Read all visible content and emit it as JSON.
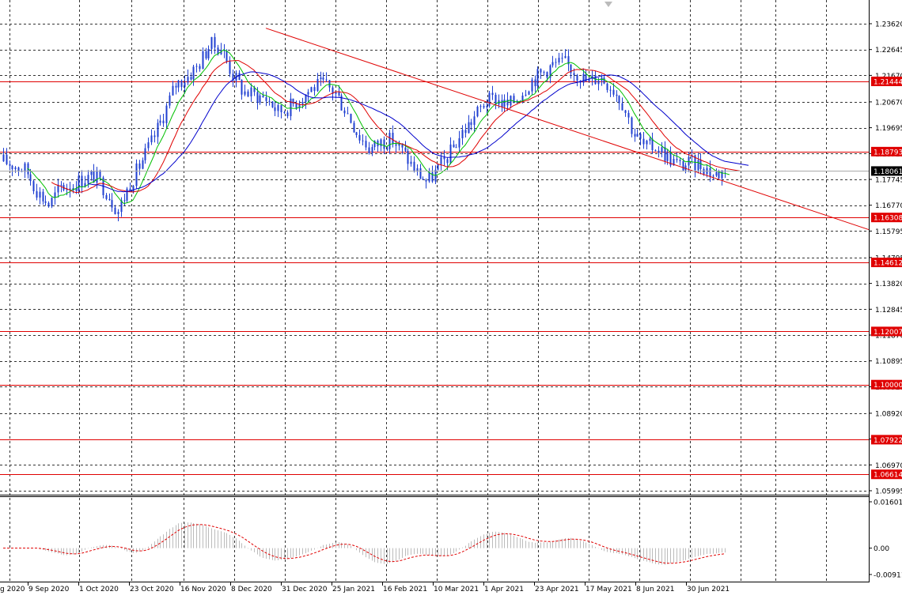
{
  "chart_data": [
    {
      "type": "candlestick",
      "instrument": "",
      "ylim": [
        1.05995,
        1.2362
      ],
      "y_ticks": [
        "1.23620",
        "1.22645",
        "1.21670",
        "1.20670",
        "1.19695",
        "1.18720",
        "1.17745",
        "1.16770",
        "1.15795",
        "1.14795",
        "1.13820",
        "1.12845",
        "1.11870",
        "1.10895",
        "1.09920",
        "1.08920",
        "1.07945",
        "1.06970",
        "1.05995"
      ],
      "x_labels": [
        "9 Sep 2020",
        "1 Oct 2020",
        "23 Oct 2020",
        "16 Nov 2020",
        "8 Dec 2020",
        "31 Dec 2020",
        "25 Jan 2021",
        "16 Feb 2021",
        "10 Mar 2021",
        "1 Apr 2021",
        "23 Apr 2021",
        "17 May 2021",
        "8 Jun 2021",
        "30 Jun 2021"
      ],
      "first_label_fragment": "g 2020",
      "current_price": "1.18061",
      "grid": true,
      "horizontal_levels": [
        {
          "value": 1.21444,
          "label": "1.21444"
        },
        {
          "value": 1.18793,
          "label": "1.18793"
        },
        {
          "value": 1.16308,
          "label": "1.16308"
        },
        {
          "value": 1.14612,
          "label": "1.14612"
        },
        {
          "value": 1.12007,
          "label": "1.12007"
        },
        {
          "value": 1.1,
          "label": "1.10000"
        },
        {
          "value": 1.07922,
          "label": "1.07922"
        },
        {
          "value": 1.06614,
          "label": "1.06614"
        }
      ],
      "trendline": {
        "start": [
          "22 Dec 2020",
          1.2345
        ],
        "end": [
          "past chart edge",
          1.1585
        ]
      },
      "price_path": [
        [
          1.183,
          1.1855
        ],
        [
          1.185,
          1.1805
        ],
        [
          1.182,
          1.1795
        ],
        [
          1.177,
          1.1685
        ],
        [
          1.17,
          1.1655
        ],
        [
          1.172,
          1.1775
        ],
        [
          1.176,
          1.1745
        ],
        [
          1.177,
          1.1785
        ],
        [
          1.18,
          1.1775
        ],
        [
          1.178,
          1.168
        ],
        [
          1.166,
          1.165
        ],
        [
          1.17,
          1.1805
        ],
        [
          1.183,
          1.1845
        ],
        [
          1.1895,
          1.1945
        ],
        [
          1.196,
          1.208
        ],
        [
          1.21,
          1.2165
        ],
        [
          1.213,
          1.219
        ],
        [
          1.216,
          1.225
        ],
        [
          1.2255,
          1.231
        ],
        [
          1.229,
          1.2255
        ],
        [
          1.219,
          1.215
        ],
        [
          1.212,
          1.209
        ],
        [
          1.2085,
          1.21
        ],
        [
          1.209,
          1.207
        ],
        [
          1.205,
          1.201
        ],
        [
          1.204,
          1.206
        ],
        [
          1.208,
          1.209
        ],
        [
          1.2105,
          1.214
        ],
        [
          1.213,
          1.2135
        ],
        [
          1.211,
          1.209
        ],
        [
          1.2045,
          1.201
        ],
        [
          1.1965,
          1.192
        ],
        [
          1.1875,
          1.19
        ],
        [
          1.193,
          1.1905
        ],
        [
          1.1935,
          1.191
        ],
        [
          1.189,
          1.185
        ],
        [
          1.182,
          1.179
        ],
        [
          1.177,
          1.176
        ],
        [
          1.1795,
          1.1835
        ],
        [
          1.186,
          1.189
        ],
        [
          1.1925,
          1.197
        ],
        [
          1.199,
          1.2015
        ],
        [
          1.205,
          1.208
        ],
        [
          1.21,
          1.206
        ],
        [
          1.204,
          1.206
        ],
        [
          1.208,
          1.21
        ],
        [
          1.214,
          1.215
        ],
        [
          1.217,
          1.218
        ],
        [
          1.22,
          1.2215
        ],
        [
          1.222,
          1.2205
        ],
        [
          1.219,
          1.217
        ],
        [
          1.215,
          1.213
        ],
        [
          1.217,
          1.216
        ],
        [
          1.214,
          1.212
        ],
        [
          1.209,
          1.205
        ],
        [
          1.198,
          1.192
        ],
        [
          1.189,
          1.19
        ],
        [
          1.191,
          1.189
        ],
        [
          1.187,
          1.185
        ],
        [
          1.183,
          1.182
        ],
        [
          1.182,
          1.185
        ],
        [
          1.186,
          1.18
        ],
        [
          1.178,
          1.18
        ],
        [
          1.181,
          1.1806
        ]
      ],
      "moving_averages": [
        {
          "color": "#00c000"
        },
        {
          "color": "#e00000"
        },
        {
          "color": "#0000cc"
        }
      ]
    },
    {
      "type": "histogram",
      "ylim": [
        -0.00911,
        0.01601
      ],
      "y_ticks": [
        "0.01601",
        "0.00",
        "-0.00911"
      ],
      "signal_color": "#e00000",
      "bar_color": "#bbbbbb"
    }
  ],
  "colors": {
    "candle": "#1f3fd1",
    "level": "#e00000",
    "trendline": "#e00000",
    "grid": "#333333",
    "axis_text": "#000000",
    "current_badge": "#000000"
  }
}
